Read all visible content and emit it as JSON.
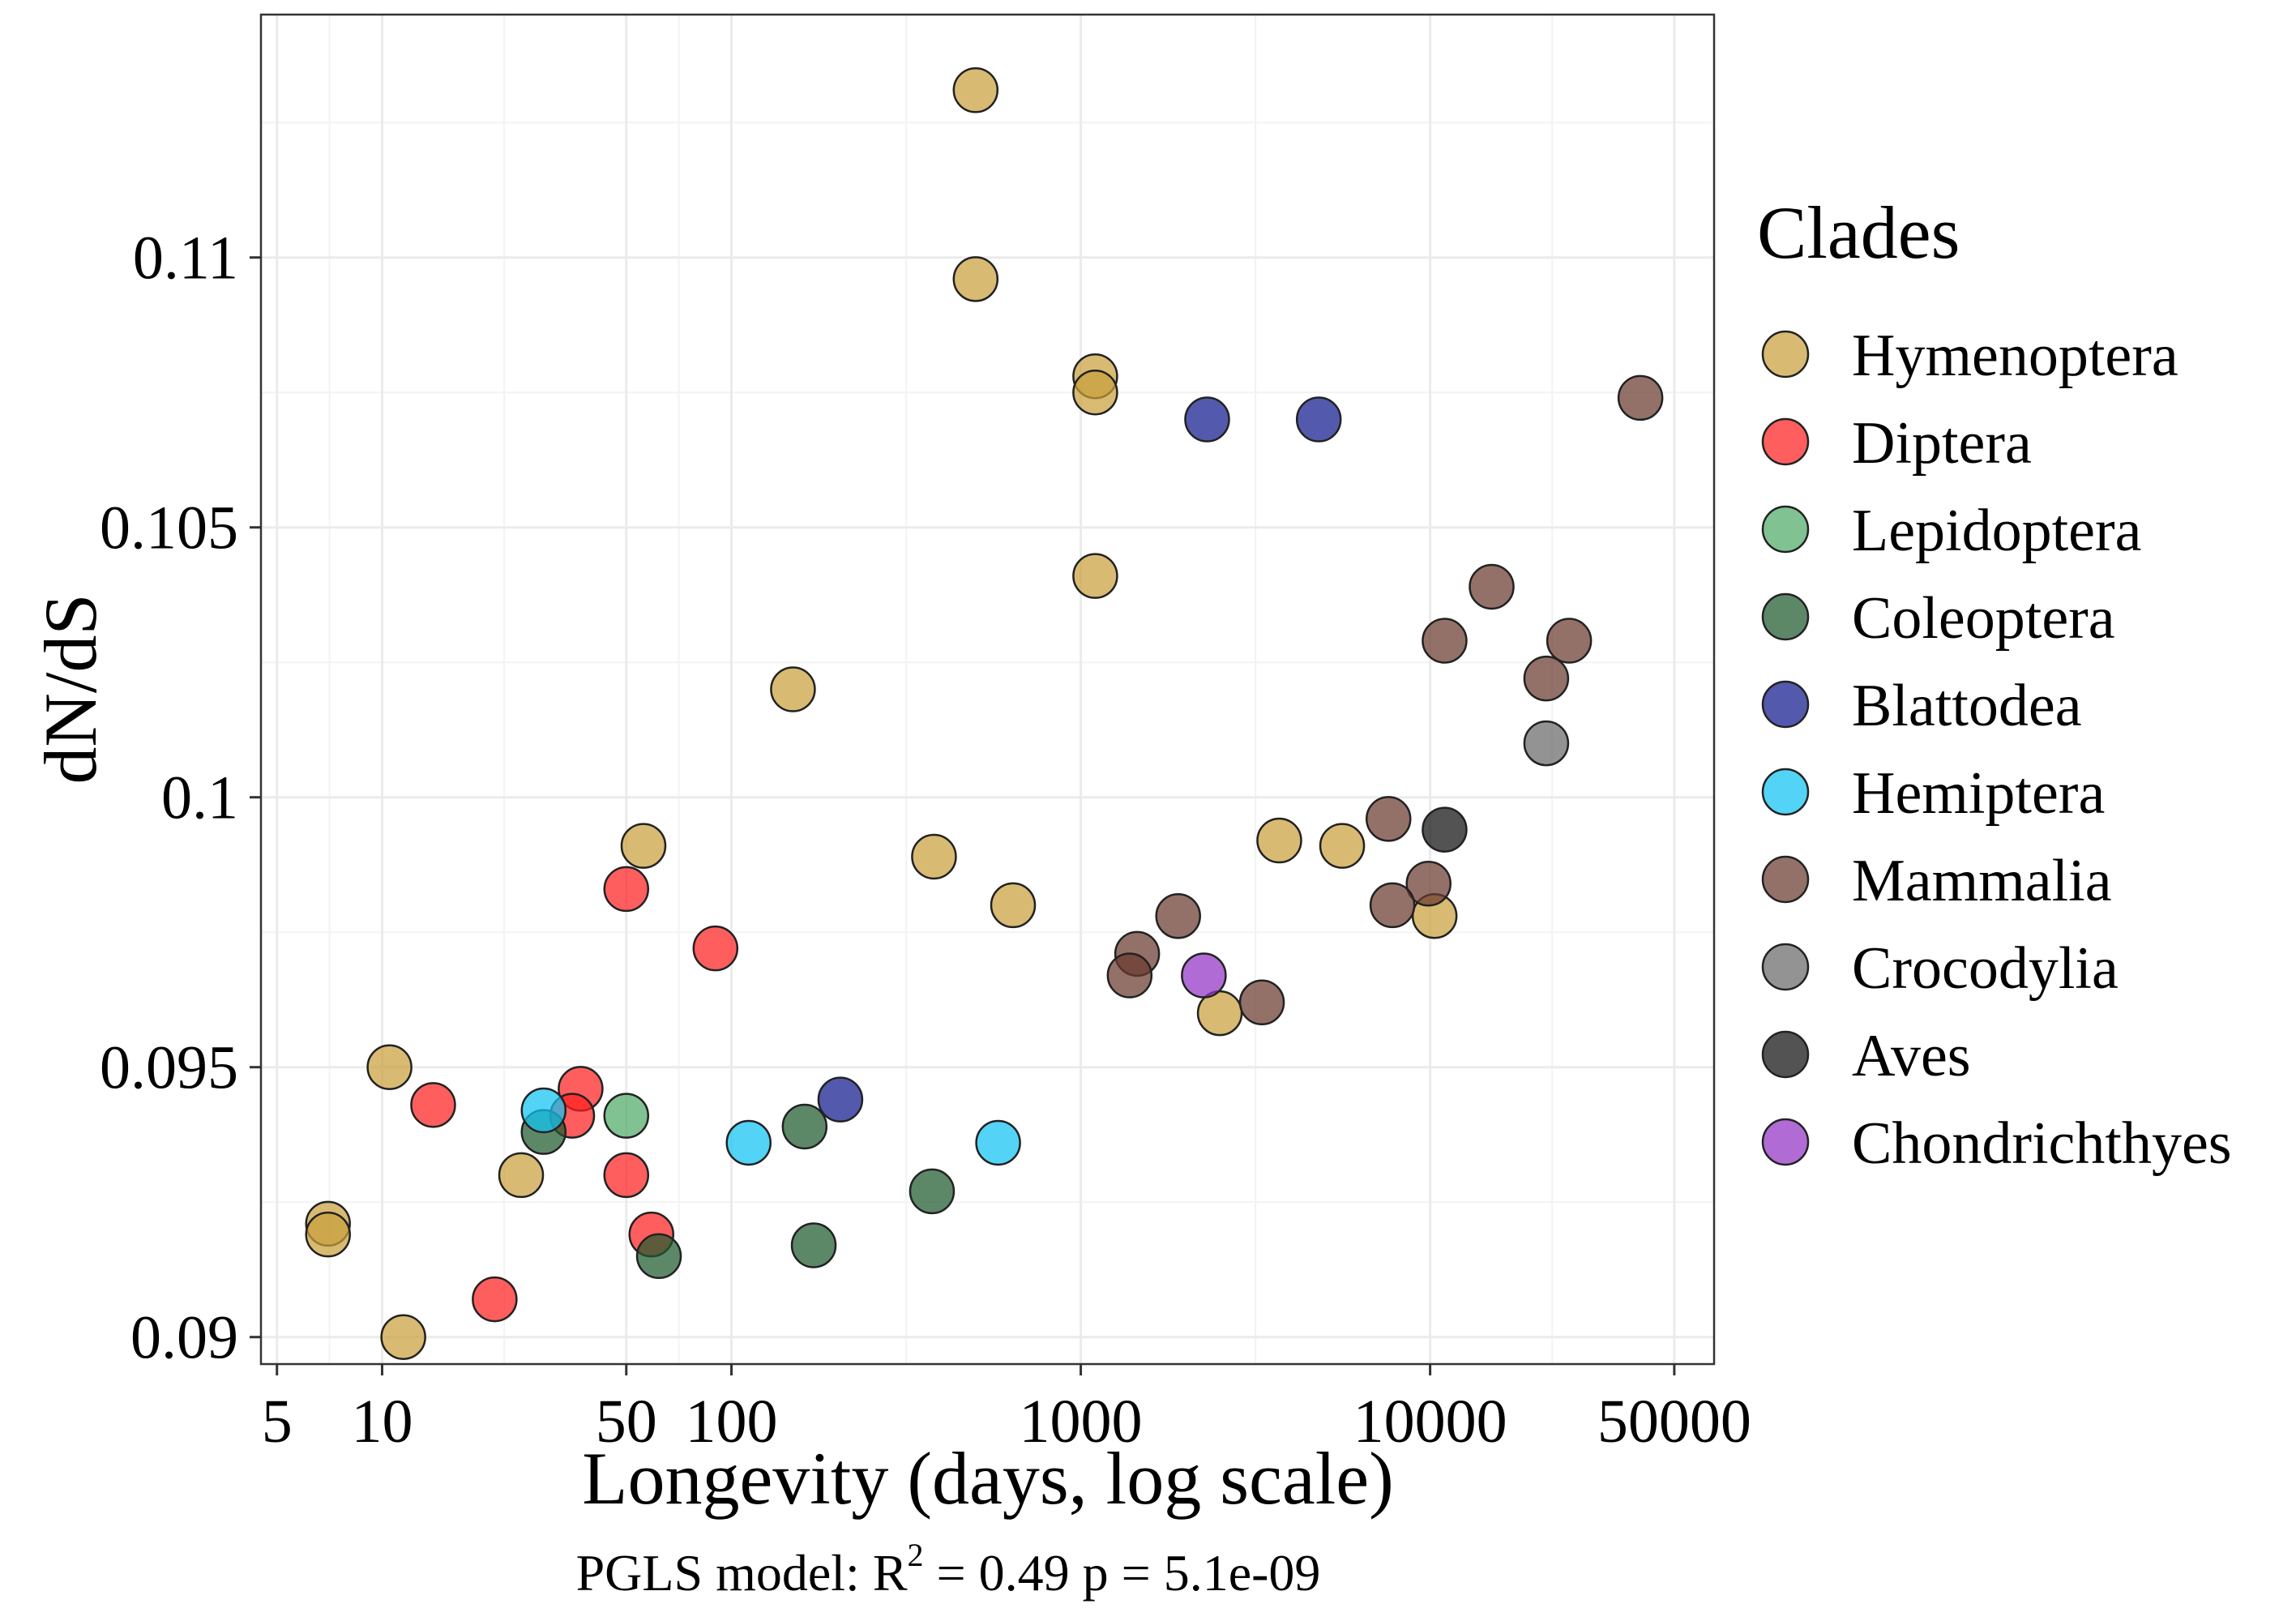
{
  "chart_data": {
    "type": "scatter",
    "xlabel": "Longevity (days, log scale)",
    "ylabel": "dN/dS",
    "x_scale": "log",
    "xlim": [
      4.5,
      65000
    ],
    "ylim": [
      0.0895,
      0.1145
    ],
    "x_ticks": [
      5,
      10,
      50,
      100,
      1000,
      10000,
      50000
    ],
    "x_tick_labels": [
      "5",
      "10",
      "50",
      "100",
      "1000",
      "10000",
      "50000"
    ],
    "y_ticks": [
      0.09,
      0.095,
      0.1,
      0.105,
      0.11
    ],
    "y_tick_labels": [
      "0.09",
      "0.095",
      "0.1",
      "0.105",
      "0.11"
    ],
    "grid": true,
    "legend_position": "right",
    "legend_title": "Clades",
    "caption_prefix": "PGLS model: R",
    "caption_superscript": "2",
    "caption_suffix": " = 0.49    p = 5.1e-09",
    "series": [
      {
        "name": "Hymenoptera",
        "color": "#C9A03C",
        "points": [
          {
            "x": 500,
            "y": 0.1131
          },
          {
            "x": 500,
            "y": 0.1096
          },
          {
            "x": 1100,
            "y": 0.1078
          },
          {
            "x": 1100,
            "y": 0.1075
          },
          {
            "x": 1100,
            "y": 0.1041
          },
          {
            "x": 150,
            "y": 0.102
          },
          {
            "x": 56,
            "y": 0.0991
          },
          {
            "x": 380,
            "y": 0.0989
          },
          {
            "x": 640,
            "y": 0.098
          },
          {
            "x": 3700,
            "y": 0.0992
          },
          {
            "x": 5600,
            "y": 0.0991
          },
          {
            "x": 10300,
            "y": 0.0978
          },
          {
            "x": 2500,
            "y": 0.096
          },
          {
            "x": 10.5,
            "y": 0.095
          },
          {
            "x": 7,
            "y": 0.0921
          },
          {
            "x": 7,
            "y": 0.0919
          },
          {
            "x": 11.5,
            "y": 0.09
          },
          {
            "x": 25,
            "y": 0.093
          }
        ]
      },
      {
        "name": "Diptera",
        "color": "#FF2020",
        "points": [
          {
            "x": 50,
            "y": 0.0983
          },
          {
            "x": 90,
            "y": 0.0972
          },
          {
            "x": 14,
            "y": 0.0943
          },
          {
            "x": 37,
            "y": 0.0946
          },
          {
            "x": 35,
            "y": 0.0941
          },
          {
            "x": 50,
            "y": 0.093
          },
          {
            "x": 59,
            "y": 0.0919
          },
          {
            "x": 21,
            "y": 0.0907
          }
        ]
      },
      {
        "name": "Lepidoptera",
        "color": "#4FAA66",
        "points": [
          {
            "x": 50,
            "y": 0.0941
          }
        ]
      },
      {
        "name": "Coleoptera",
        "color": "#1E5A2E",
        "points": [
          {
            "x": 29,
            "y": 0.0938
          },
          {
            "x": 162,
            "y": 0.0939
          },
          {
            "x": 375,
            "y": 0.0927
          },
          {
            "x": 172,
            "y": 0.0917
          },
          {
            "x": 62,
            "y": 0.0915
          }
        ]
      },
      {
        "name": "Blattodea",
        "color": "#101A8E",
        "points": [
          {
            "x": 2300,
            "y": 0.107
          },
          {
            "x": 4800,
            "y": 0.107
          },
          {
            "x": 205,
            "y": 0.0944
          }
        ]
      },
      {
        "name": "Hemiptera",
        "color": "#10C4F2",
        "points": [
          {
            "x": 29,
            "y": 0.0942
          },
          {
            "x": 112,
            "y": 0.0936
          },
          {
            "x": 580,
            "y": 0.0936
          }
        ]
      },
      {
        "name": "Mammalia",
        "color": "#6B3A2E",
        "points": [
          {
            "x": 40000,
            "y": 0.1074
          },
          {
            "x": 15000,
            "y": 0.1039
          },
          {
            "x": 11000,
            "y": 0.1029
          },
          {
            "x": 25000,
            "y": 0.1029
          },
          {
            "x": 21500,
            "y": 0.1022
          },
          {
            "x": 7600,
            "y": 0.0996
          },
          {
            "x": 9900,
            "y": 0.0984
          },
          {
            "x": 7800,
            "y": 0.098
          },
          {
            "x": 1900,
            "y": 0.0978
          },
          {
            "x": 1450,
            "y": 0.0971
          },
          {
            "x": 1380,
            "y": 0.0967
          },
          {
            "x": 3300,
            "y": 0.0962
          }
        ]
      },
      {
        "name": "Crocodylia",
        "color": "#6A6A6A",
        "points": [
          {
            "x": 21500,
            "y": 0.101
          }
        ]
      },
      {
        "name": "Aves",
        "color": "#111111",
        "points": [
          {
            "x": 11000,
            "y": 0.0994
          }
        ]
      },
      {
        "name": "Chondrichthyes",
        "color": "#9233C4",
        "points": [
          {
            "x": 2250,
            "y": 0.0967
          }
        ]
      }
    ]
  }
}
